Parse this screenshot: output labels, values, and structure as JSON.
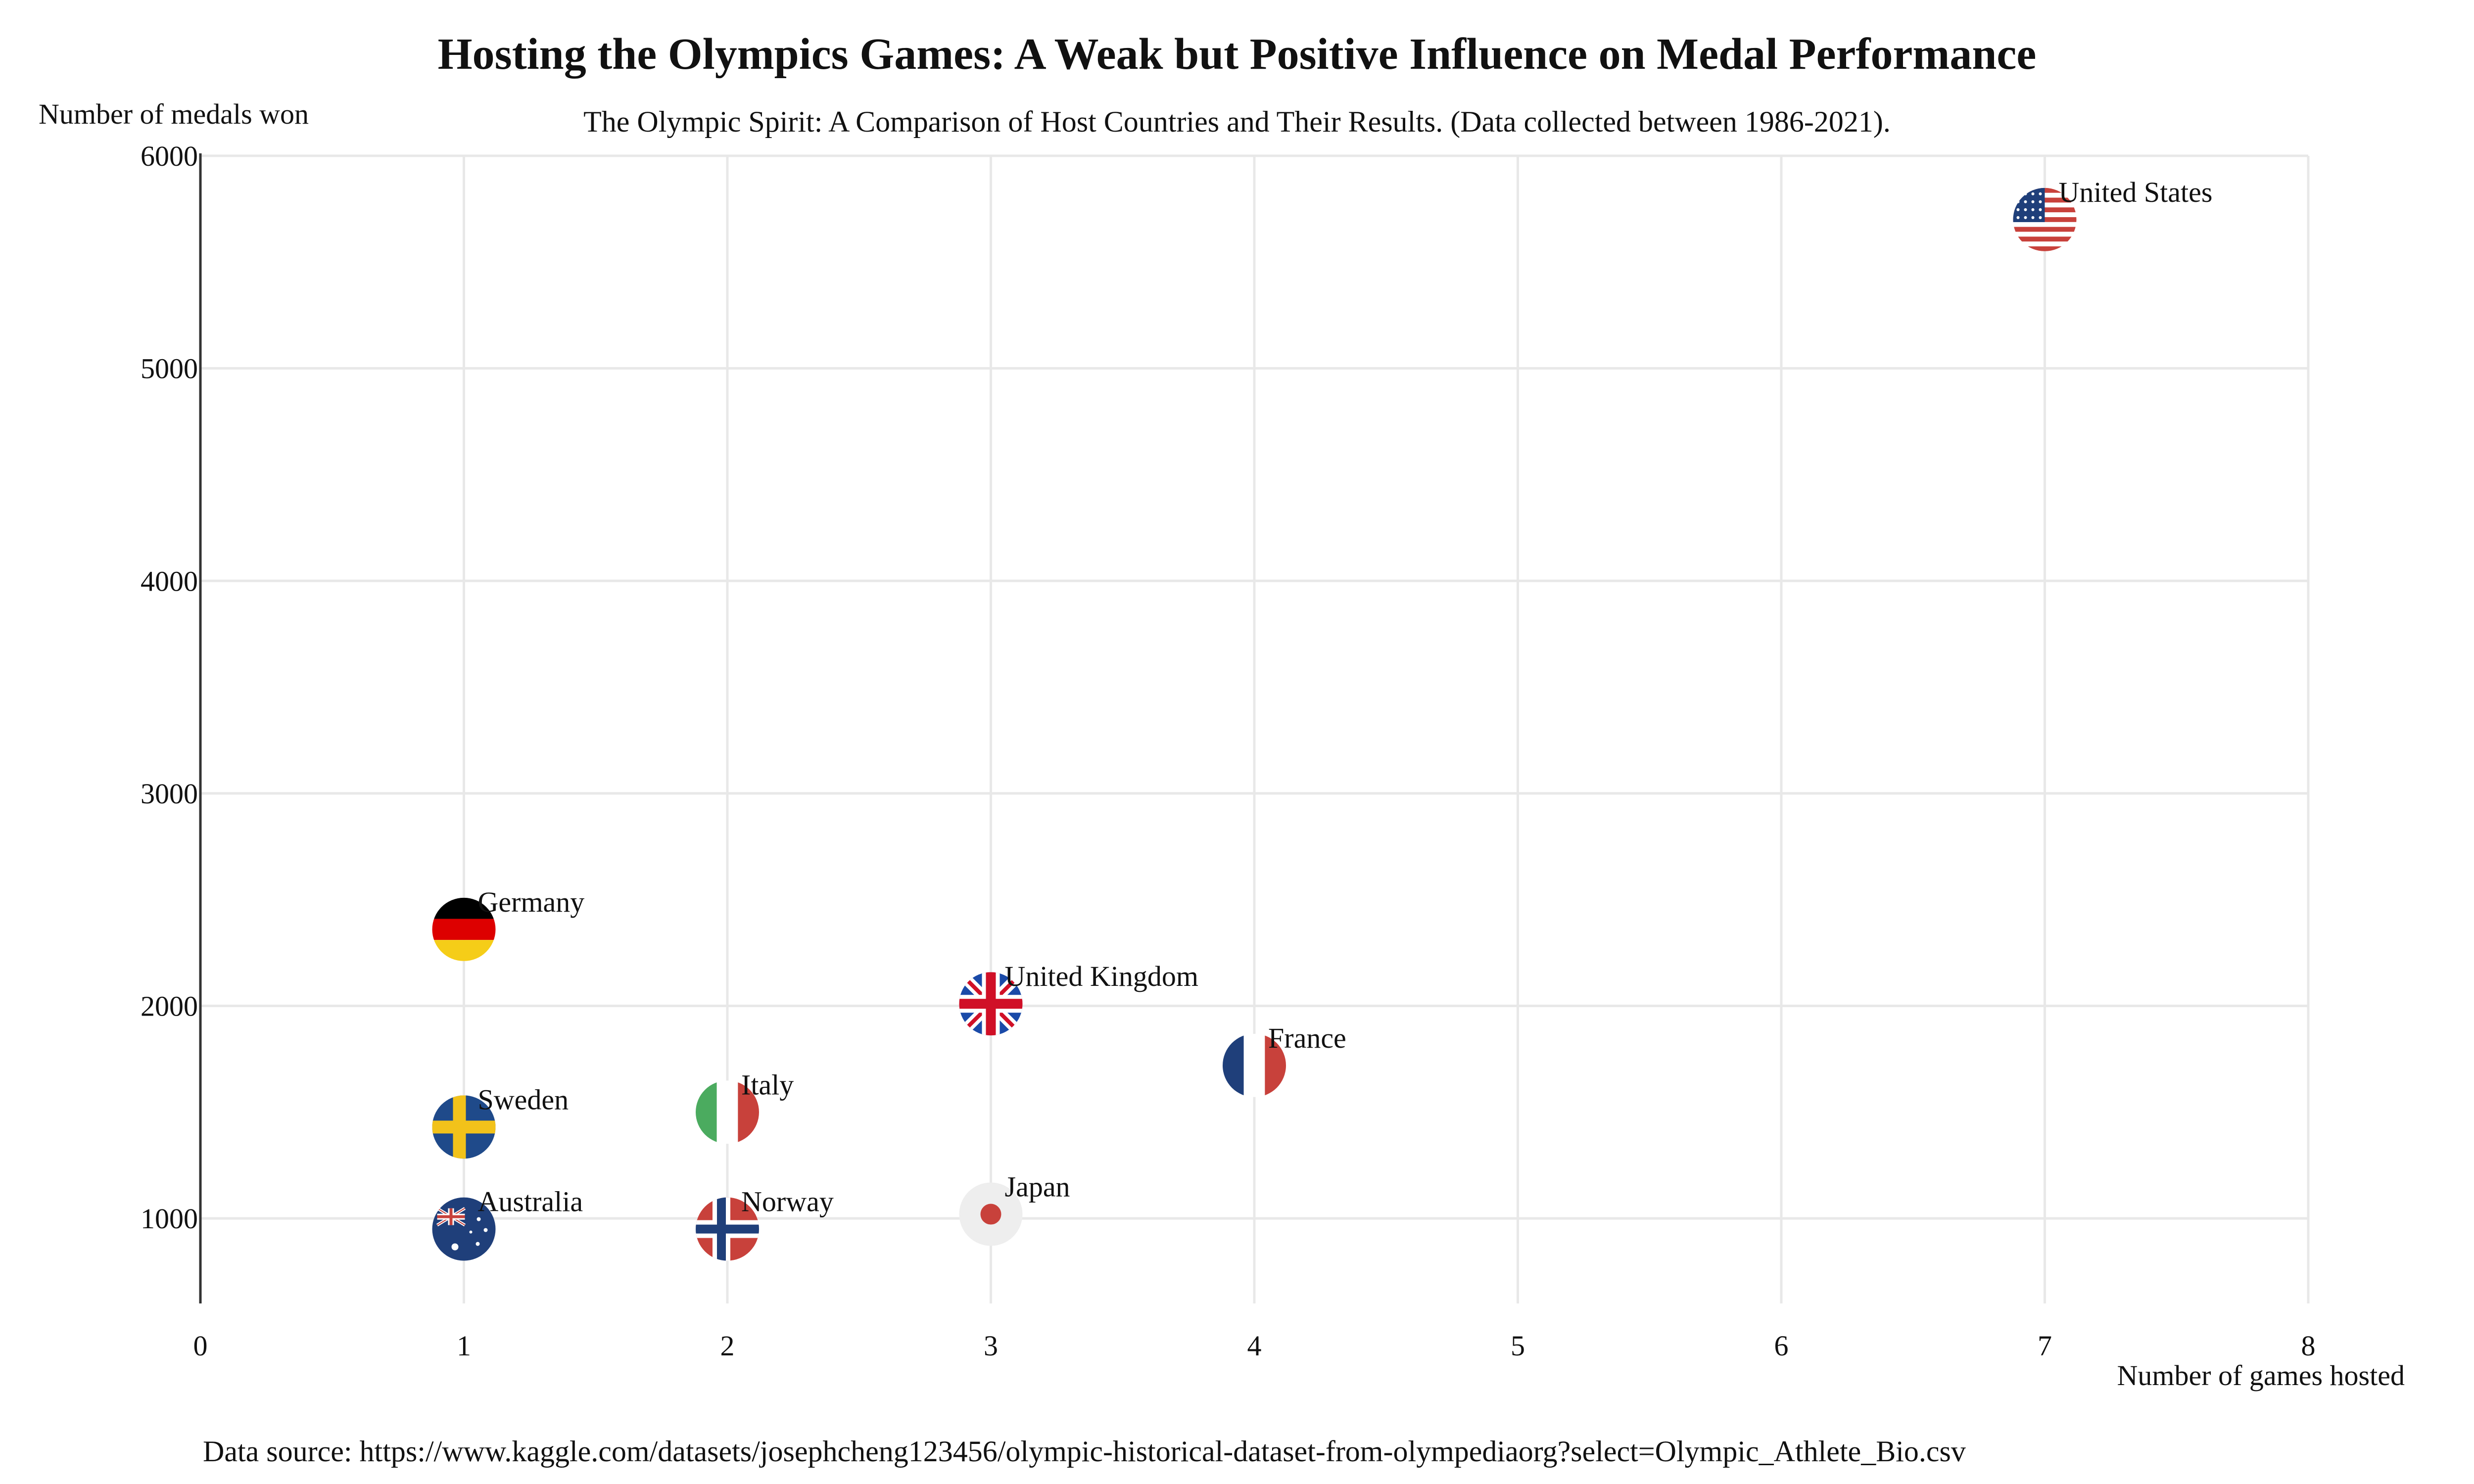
{
  "chart_data": {
    "type": "scatter",
    "title": "Hosting the Olympics Games: A Weak but Positive Influence on Medal Performance",
    "subtitle": "The Olympic Spirit: A Comparison of Host Countries and Their Results. (Data collected between 1986-2021).",
    "xlabel": "Number of games hosted",
    "ylabel": "Number of medals won",
    "xlim": [
      0,
      8
    ],
    "ylim": [
      600,
      6000
    ],
    "x_ticks": [
      0,
      1,
      2,
      3,
      4,
      5,
      6,
      7,
      8
    ],
    "y_ticks": [
      1000,
      2000,
      3000,
      4000,
      5000,
      6000
    ],
    "grid": true,
    "marker": "circular country flag",
    "points": [
      {
        "label": "United States",
        "x": 7,
        "y": 5700,
        "flag": "united-states"
      },
      {
        "label": "Germany",
        "x": 1,
        "y": 2360,
        "flag": "germany"
      },
      {
        "label": "United Kingdom",
        "x": 3,
        "y": 2010,
        "flag": "united-kingdom"
      },
      {
        "label": "France",
        "x": 4,
        "y": 1720,
        "flag": "france"
      },
      {
        "label": "Italy",
        "x": 2,
        "y": 1500,
        "flag": "italy"
      },
      {
        "label": "Sweden",
        "x": 1,
        "y": 1430,
        "flag": "sweden"
      },
      {
        "label": "Australia",
        "x": 1,
        "y": 950,
        "flag": "australia"
      },
      {
        "label": "Norway",
        "x": 2,
        "y": 950,
        "flag": "norway"
      },
      {
        "label": "Japan",
        "x": 3,
        "y": 1020,
        "flag": "japan"
      }
    ]
  },
  "footer": {
    "source": "Data source: https://www.kaggle.com/datasets/josephcheng123456/olympic-historical-dataset-from-olympediaorg?select=Olympic_Athlete_Bio.csv"
  },
  "colors": {
    "grid": "#e8e8e8",
    "axis": "#333333",
    "text": "#111111",
    "us_red": "#c8413b",
    "navy": "#1f3f7a",
    "germany_red": "#dd0000",
    "germany_gold": "#f5cd18",
    "uk_blue": "#1a4aa8",
    "uk_red": "#d01027",
    "france_blue": "#1f3f7a",
    "france_red": "#c8413b",
    "italy_green": "#4bab5f",
    "italy_red": "#c8413b",
    "sweden_blue": "#1f4a8a",
    "sweden_yellow": "#f2c21a",
    "australia_blue": "#1f3f7a",
    "norway_red": "#c8413b",
    "norway_blue": "#1f3f7a",
    "japan_bg": "#eeeeee",
    "japan_red": "#c8413b"
  }
}
